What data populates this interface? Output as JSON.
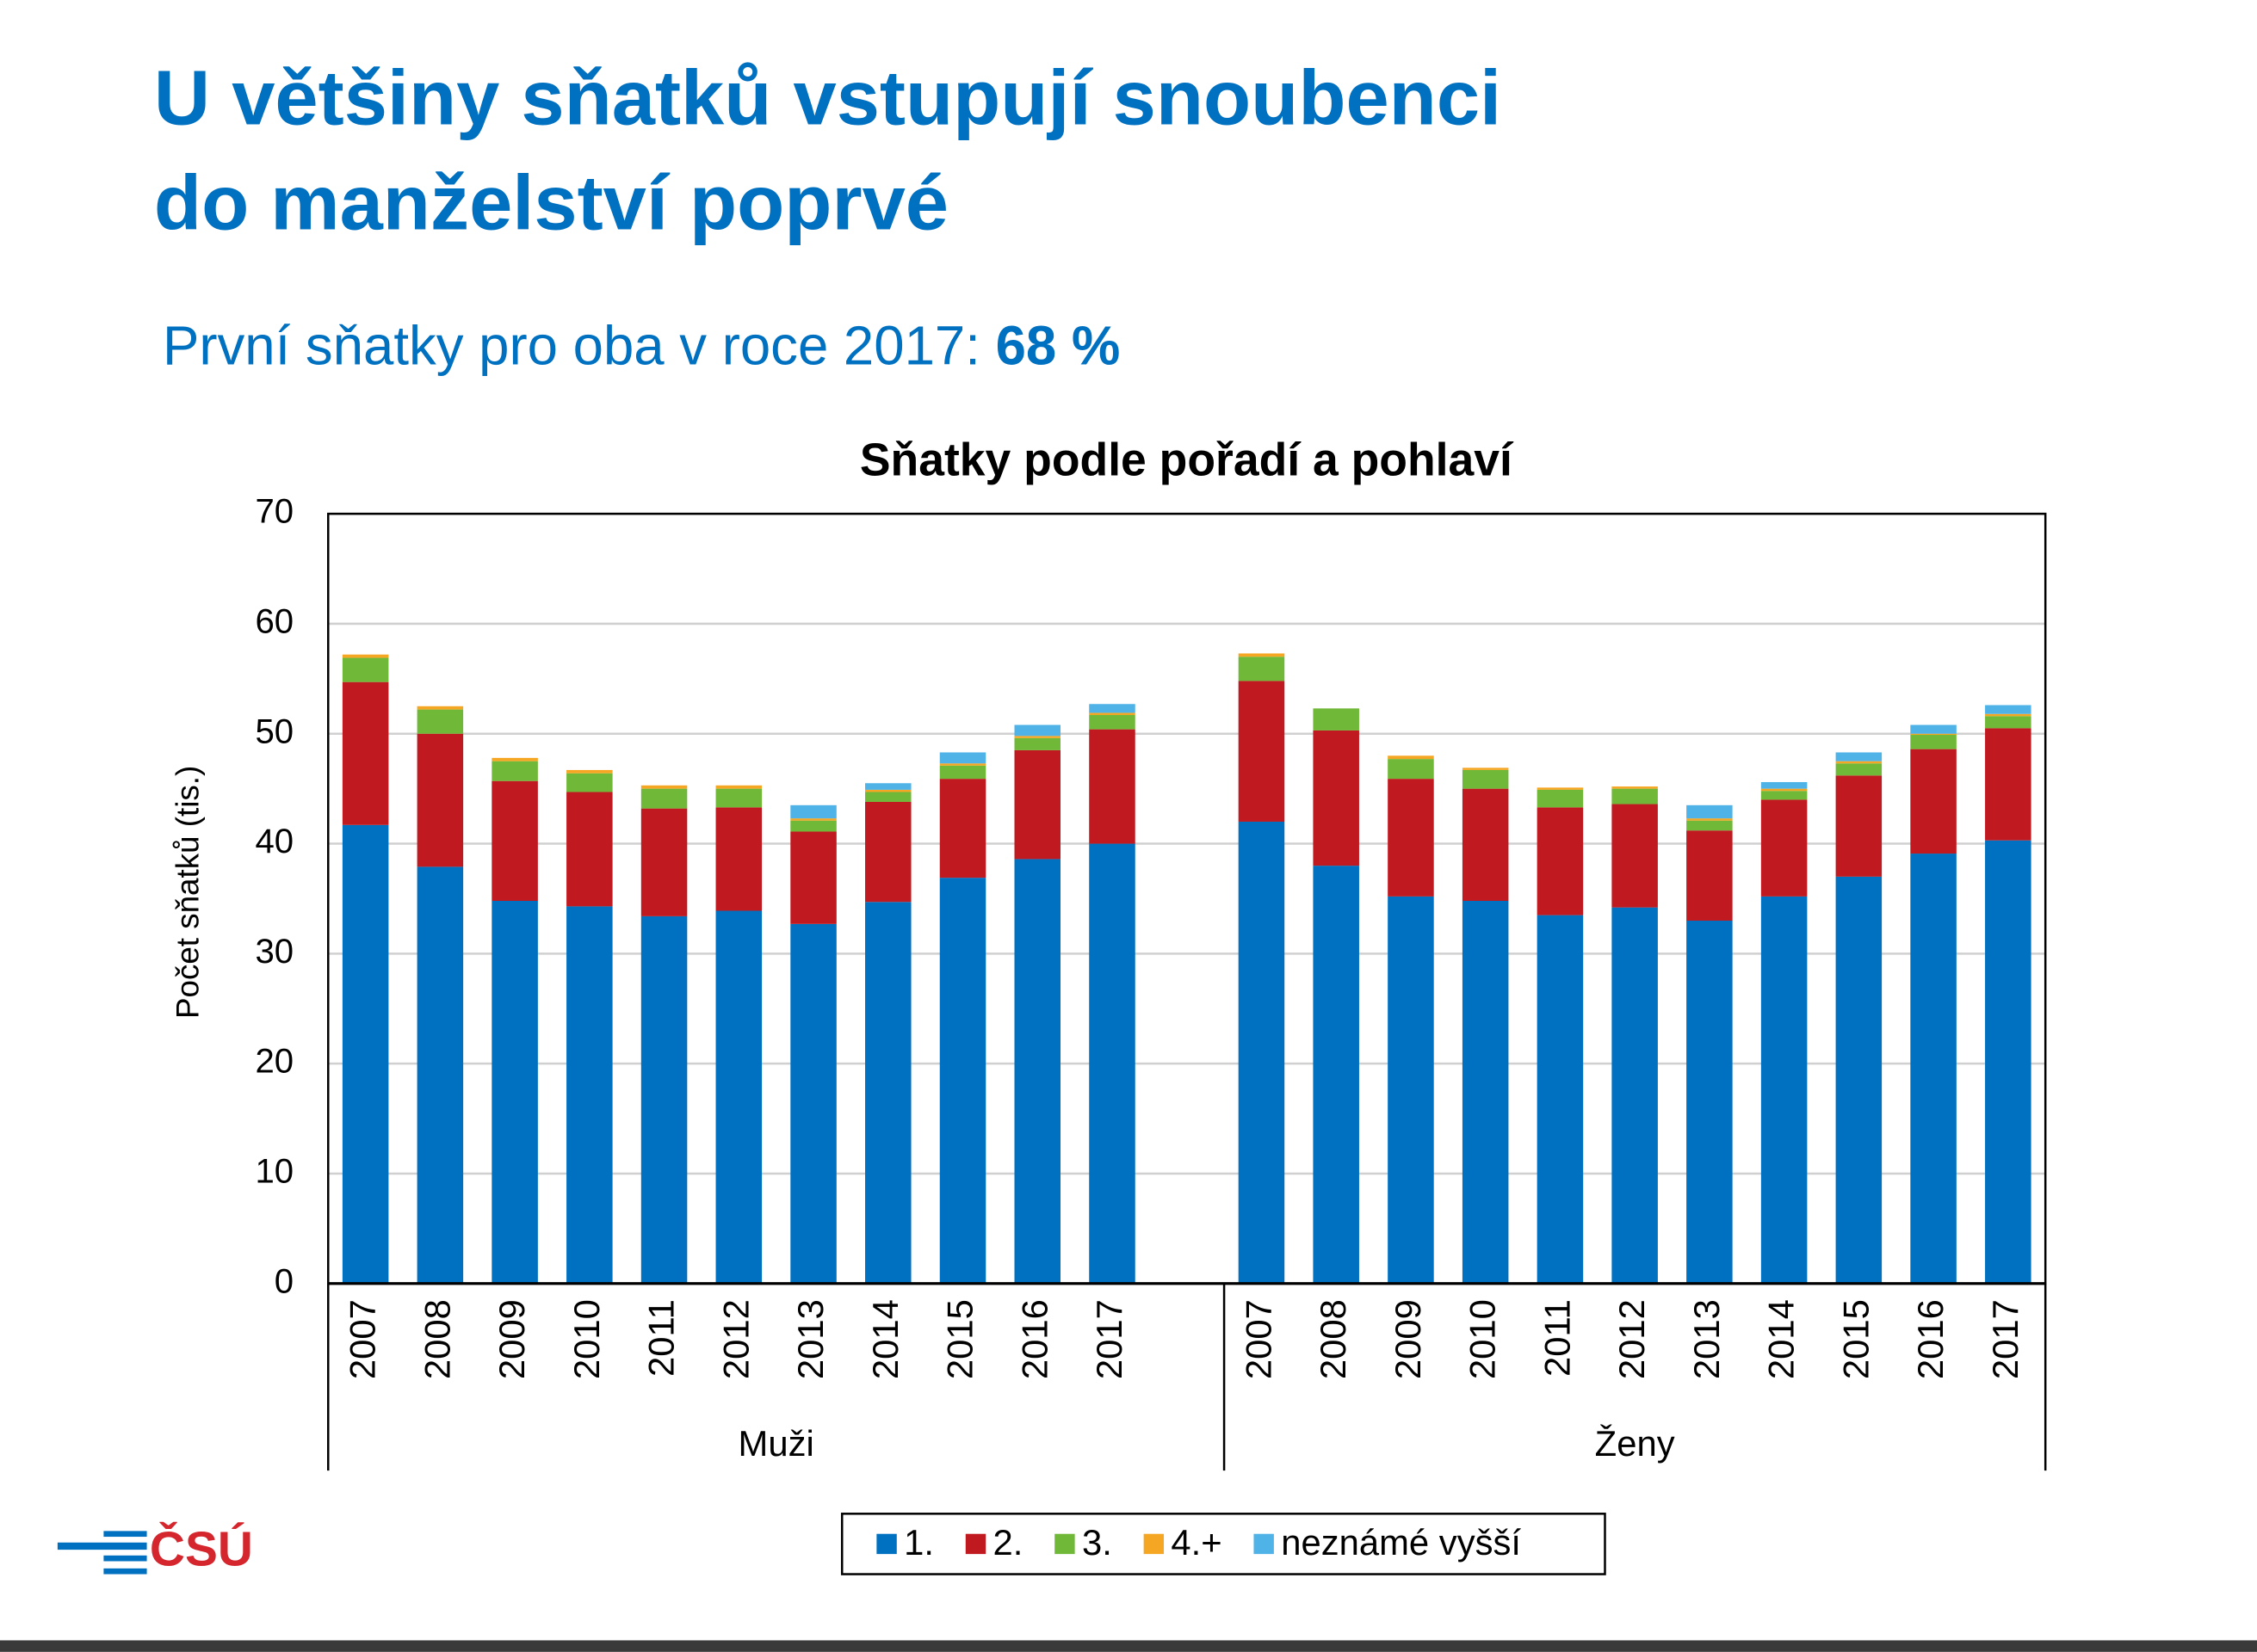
{
  "header": {
    "title_lines": [
      "U většiny sňatků vstupují snoubenci",
      "do manželství poprvé"
    ],
    "subtitle": "První sňatky pro oba v roce 2017:",
    "subtitle_highlight": "68 %"
  },
  "logo": "ČSÚ",
  "chart_data": {
    "type": "stacked_bar",
    "title": "Sňatky podle pořadí a pohlaví",
    "y_label": "Počet sňatků (tis.)",
    "category_groups": [
      {
        "name": "Muži",
        "categories": [
          "2007",
          "2008",
          "2009",
          "2010",
          "2011",
          "2012",
          "2013",
          "2014",
          "2015",
          "2016",
          "2017"
        ]
      },
      {
        "name": "Ženy",
        "categories": [
          "2007",
          "2008",
          "2009",
          "2010",
          "2011",
          "2012",
          "2013",
          "2014",
          "2015",
          "2016",
          "2017"
        ]
      }
    ],
    "ylim": [
      0,
      70
    ],
    "yticks": [
      0,
      10,
      20,
      30,
      40,
      50,
      60,
      70
    ],
    "grid": true,
    "legend": "bottom",
    "series": [
      {
        "name": "1.",
        "color": "#0070c0",
        "values": [
          41.7,
          37.9,
          34.8,
          34.3,
          33.4,
          33.9,
          32.7,
          34.7,
          36.9,
          38.6,
          40.0,
          42.0,
          38.0,
          35.2,
          34.8,
          33.5,
          34.2,
          33.0,
          35.2,
          37.0,
          39.1,
          40.3
        ]
      },
      {
        "name": "2.",
        "color": "#c0191f",
        "values": [
          13.0,
          12.1,
          10.9,
          10.4,
          9.8,
          9.4,
          8.4,
          9.1,
          9.0,
          9.9,
          10.4,
          12.8,
          12.3,
          10.7,
          10.2,
          9.8,
          9.4,
          8.2,
          8.8,
          9.2,
          9.5,
          10.2
        ]
      },
      {
        "name": "3.",
        "color": "#70b838",
        "values": [
          2.2,
          2.2,
          1.8,
          1.7,
          1.8,
          1.7,
          1.0,
          0.9,
          1.2,
          1.1,
          1.3,
          2.2,
          2.0,
          1.8,
          1.7,
          1.6,
          1.4,
          0.9,
          0.8,
          1.1,
          1.3,
          1.1
        ]
      },
      {
        "name": "4.+",
        "color": "#f5a623",
        "values": [
          0.3,
          0.3,
          0.3,
          0.3,
          0.3,
          0.3,
          0.2,
          0.2,
          0.2,
          0.2,
          0.2,
          0.3,
          0,
          0.3,
          0.2,
          0.2,
          0.2,
          0.2,
          0.2,
          0.2,
          0.1,
          0.2
        ]
      },
      {
        "name": "neznámé vyšší",
        "color": "#4fb3e8",
        "values": [
          0,
          0,
          0,
          0,
          0,
          0,
          1.2,
          0.6,
          1.0,
          1.0,
          0.8,
          0,
          0,
          0,
          0,
          0,
          0,
          1.2,
          0.6,
          0.8,
          0.8,
          0.8
        ]
      }
    ]
  }
}
